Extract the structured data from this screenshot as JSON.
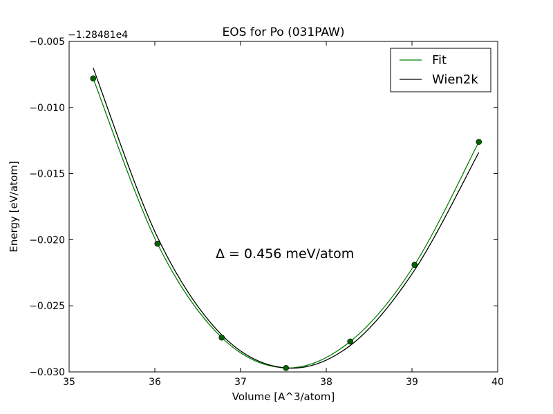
{
  "chart_data": {
    "type": "line",
    "title": "EOS for Po (031PAW)",
    "xlabel": "Volume [A^3/atom]",
    "ylabel": "Energy [eV/atom]",
    "offset_label": "−1.28481e4",
    "annotation": "Δ = 0.456 meV/atom",
    "xlim": [
      35,
      40
    ],
    "ylim": [
      -0.03,
      -0.005
    ],
    "x_ticks": [
      35,
      36,
      37,
      38,
      39,
      40
    ],
    "x_tick_labels": [
      "35",
      "36",
      "37",
      "38",
      "39",
      "40"
    ],
    "y_ticks": [
      -0.03,
      -0.025,
      -0.02,
      -0.015,
      -0.01,
      -0.005
    ],
    "y_tick_labels": [
      "−0.030",
      "−0.025",
      "−0.020",
      "−0.015",
      "−0.010",
      "−0.005"
    ],
    "legend_position": "top-right",
    "grid": false,
    "series": [
      {
        "name": "Fit",
        "style": "line",
        "color": "#008000",
        "x": [
          35.28,
          36.03,
          36.78,
          37.53,
          38.28,
          39.03,
          39.78
        ],
        "y": [
          -0.0078,
          -0.0203,
          -0.0274,
          -0.0297,
          -0.0277,
          -0.0219,
          -0.0126
        ]
      },
      {
        "name": "Wien2k",
        "style": "line",
        "color": "#000000",
        "x": [
          35.28,
          36.03,
          36.78,
          37.53,
          38.28,
          39.03,
          39.78
        ],
        "y": [
          -0.007,
          -0.0198,
          -0.0272,
          -0.0297,
          -0.028,
          -0.0223,
          -0.0134
        ]
      },
      {
        "name": "",
        "style": "markers",
        "color": "#006400",
        "x": [
          35.28,
          36.03,
          36.78,
          37.53,
          38.28,
          39.03,
          39.78
        ],
        "y": [
          -0.0078,
          -0.0203,
          -0.0274,
          -0.0297,
          -0.0277,
          -0.0219,
          -0.0126
        ]
      }
    ]
  }
}
